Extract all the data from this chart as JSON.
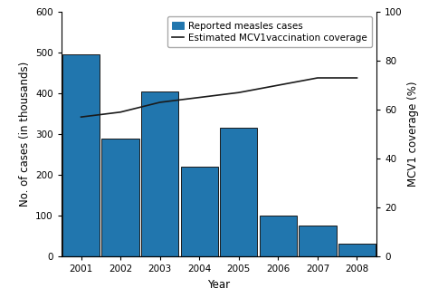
{
  "years": [
    2001,
    2002,
    2003,
    2004,
    2005,
    2006,
    2007,
    2008
  ],
  "cases_thousands": [
    495,
    290,
    405,
    220,
    315,
    100,
    75,
    30
  ],
  "mcv1_coverage": [
    57,
    59,
    63,
    65,
    67,
    70,
    73,
    73
  ],
  "bar_color": "#2176AE",
  "bar_edge_color": "#1a1a1a",
  "line_color": "#1a1a1a",
  "left_ylabel": "No. of cases (in thousands)",
  "right_ylabel": "MCV1 coverage (%)",
  "xlabel": "Year",
  "left_ylim": [
    0,
    600
  ],
  "right_ylim": [
    0,
    100
  ],
  "left_yticks": [
    0,
    100,
    200,
    300,
    400,
    500,
    600
  ],
  "right_yticks": [
    0,
    20,
    40,
    60,
    80,
    100
  ],
  "legend_bar_label": "Reported measles cases",
  "legend_line_label": "Estimated MCV1vaccination coverage",
  "tick_fontsize": 7.5,
  "label_fontsize": 8.5,
  "legend_fontsize": 7.5,
  "fig_width": 4.84,
  "fig_height": 3.29,
  "dpi": 100
}
